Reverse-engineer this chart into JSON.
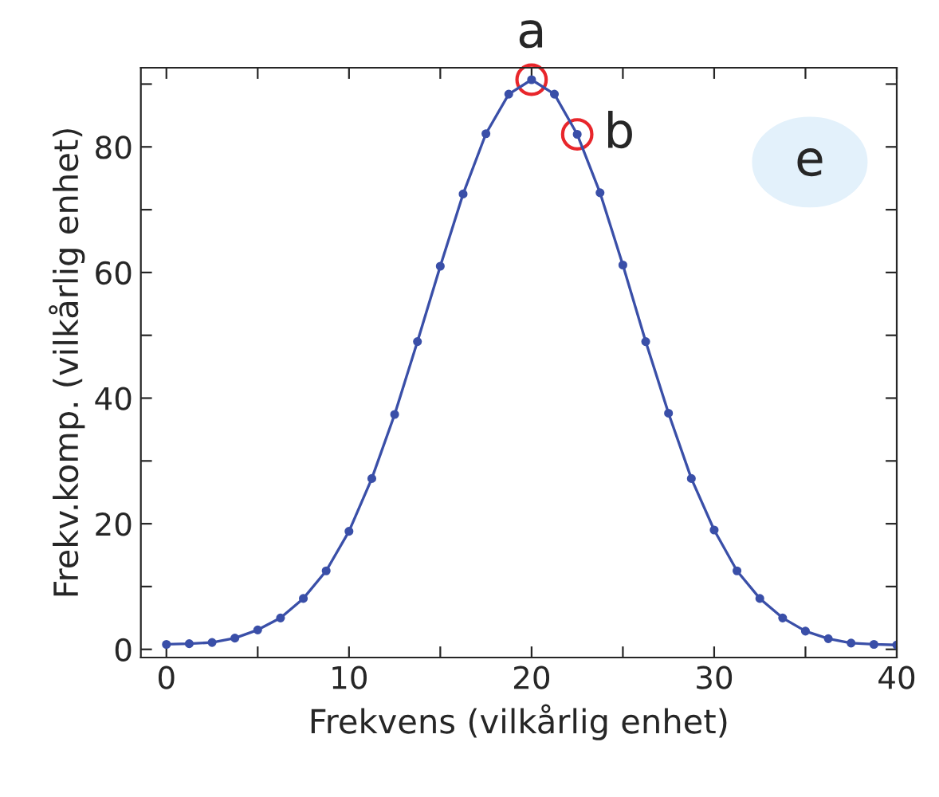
{
  "chart_data": {
    "type": "line",
    "xlabel": "Frekvens (vilkårlig enhet)",
    "ylabel": "Frekv.komp. (vilkårlig enhet)",
    "x": [
      0,
      1.25,
      2.5,
      3.75,
      5,
      6.25,
      7.5,
      8.75,
      10,
      11.25,
      12.5,
      13.75,
      15,
      16.25,
      17.5,
      18.75,
      20,
      21.25,
      22.5,
      23.75,
      25,
      26.25,
      27.5,
      28.75,
      30,
      31.25,
      32.5,
      33.75,
      35,
      36.25,
      37.5,
      38.75,
      40
    ],
    "series": [
      {
        "color": "#3a4fa8",
        "values": [
          0.8,
          0.9,
          1.1,
          1.8,
          3.1,
          5.0,
          8.1,
          12.5,
          18.8,
          27.2,
          37.4,
          49.0,
          61.0,
          72.5,
          82.1,
          88.4,
          90.7,
          88.4,
          82.0,
          72.7,
          61.2,
          49.0,
          37.6,
          27.2,
          19.0,
          12.5,
          8.1,
          5.0,
          2.9,
          1.7,
          1.0,
          0.8,
          0.7
        ]
      }
    ],
    "xlim": [
      -1.4,
      40
    ],
    "ylim": [
      -1.3,
      92.6
    ],
    "xticks": [
      0,
      {
        "value": 5,
        "label": null
      },
      10,
      {
        "value": 15,
        "label": null
      },
      20,
      {
        "value": 25,
        "label": null
      },
      30,
      {
        "value": 35,
        "label": null
      },
      40
    ],
    "yticks": [
      0,
      {
        "value": 10,
        "label": null
      },
      20,
      {
        "value": 30,
        "label": null
      },
      40,
      {
        "value": 50,
        "label": null
      },
      60,
      {
        "value": 70,
        "label": null
      },
      80,
      {
        "value": 90,
        "label": null
      }
    ],
    "annotations": [
      {
        "text": "a",
        "x": 20,
        "y": 90.7
      },
      {
        "text": "b",
        "x": 22.5,
        "y": 82.0
      },
      "e"
    ],
    "marker": "circle",
    "line_style": "solid",
    "grid": false,
    "legend": false
  }
}
